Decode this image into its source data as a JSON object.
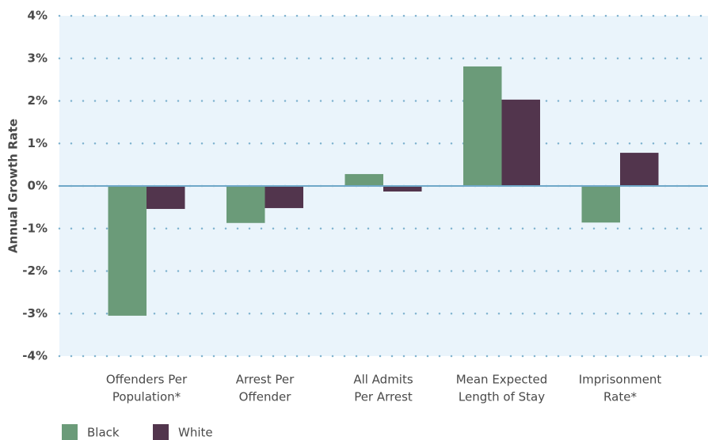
{
  "chart_data": {
    "type": "bar",
    "y_label": "Annual Growth Rate",
    "categories": [
      [
        "Offenders Per",
        "Population*"
      ],
      [
        "Arrest Per",
        "Offender"
      ],
      [
        "All Admits",
        "Per Arrest"
      ],
      [
        "Mean Expected",
        "Length of Stay"
      ],
      [
        "Imprisonment",
        "Rate*"
      ]
    ],
    "series": [
      {
        "name": "Black",
        "color": "#6b9b79",
        "values": [
          -3.05,
          -0.87,
          0.28,
          2.81,
          -0.86
        ]
      },
      {
        "name": "White",
        "color": "#52354d",
        "values": [
          -0.54,
          -0.52,
          -0.13,
          2.03,
          0.78
        ]
      }
    ],
    "ylim": [
      -4,
      4
    ],
    "yticks": [
      {
        "value": -4,
        "label": "-4%"
      },
      {
        "value": -3,
        "label": "-3%"
      },
      {
        "value": -2,
        "label": "-2%"
      },
      {
        "value": -1,
        "label": "-1%"
      },
      {
        "value": 0,
        "label": "0%"
      },
      {
        "value": 1,
        "label": "1%"
      },
      {
        "value": 2,
        "label": "2%"
      },
      {
        "value": 3,
        "label": "3%"
      },
      {
        "value": 4,
        "label": "4%"
      }
    ],
    "grid": true
  }
}
